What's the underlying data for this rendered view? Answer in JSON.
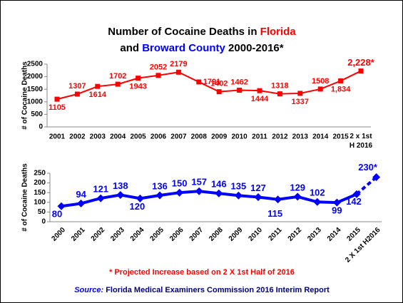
{
  "title_parts": [
    {
      "text": "Number of Cocaine Deaths in ",
      "color": "#000000"
    },
    {
      "text": "Florida",
      "color": "#ff0000"
    },
    {
      "text": "and ",
      "color": "#000000"
    },
    {
      "text": "Broward County",
      "color": "#0000ff"
    },
    {
      "text": " 2000-2016*",
      "color": "#000000"
    }
  ],
  "footnote": "* Projected Increase based on 2 X 1st Half of 2016",
  "source_label": "Source:",
  "source_text": " Florida Medical Examiners Commission 2016 Interim Report",
  "chart_data": [
    {
      "type": "line",
      "y_label": "# of Cocaine Deaths",
      "color": "#ff0000",
      "marker": "square",
      "categories": [
        "2001",
        "2002",
        "2003",
        "2004",
        "2005",
        "2006",
        "2007",
        "2008",
        "2009",
        "2010",
        "2011",
        "2012",
        "2013",
        "2014",
        "2015",
        "2 x 1st H 2016"
      ],
      "values": [
        1105,
        1307,
        1614,
        1702,
        1943,
        2052,
        2179,
        1791,
        1402,
        1462,
        1444,
        1318,
        1337,
        1508,
        1834,
        2228
      ],
      "value_labels": [
        "1105",
        "1307",
        "1614",
        "1702",
        "1943",
        "2052",
        "2179",
        "1791",
        "1402",
        "1462",
        "1444",
        "1318",
        "1337",
        "1508",
        "1,834",
        "2,228*"
      ],
      "ylim": [
        0,
        2500
      ],
      "yticks": [
        0,
        500,
        1000,
        1500,
        2000,
        2500
      ],
      "last_segment_dashed": false
    },
    {
      "type": "line",
      "y_label": "# of Cocaine Deaths",
      "color": "#0000ff",
      "marker": "diamond",
      "categories": [
        "2000",
        "2001",
        "2002",
        "2003",
        "2004",
        "2005",
        "2006",
        "2007",
        "2008",
        "2009",
        "2010",
        "2011",
        "2012",
        "2013",
        "2014",
        "2015",
        "2 X 1st H2016"
      ],
      "values": [
        80,
        94,
        121,
        138,
        120,
        136,
        150,
        157,
        146,
        135,
        127,
        115,
        129,
        102,
        99,
        142,
        230
      ],
      "value_labels": [
        "80",
        "94",
        "121",
        "138",
        "120",
        "136",
        "150",
        "157",
        "146",
        "135",
        "127",
        "115",
        "129",
        "102",
        "99",
        "142",
        "230*"
      ],
      "ylim": [
        0,
        250
      ],
      "yticks": [
        0,
        50,
        100,
        150,
        200,
        250
      ],
      "last_segment_dashed": true
    }
  ]
}
